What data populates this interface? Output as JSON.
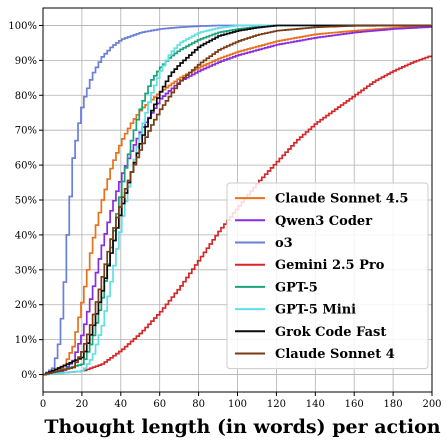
{
  "chart_data": {
    "type": "line",
    "xlabel": "Thought length (in words) per action",
    "ylabel": "",
    "xlim": [
      0,
      200
    ],
    "ylim": [
      -5,
      105
    ],
    "xticks": [
      0,
      20,
      40,
      60,
      80,
      100,
      120,
      140,
      160,
      180,
      200
    ],
    "yticks": [
      0,
      10,
      20,
      30,
      40,
      50,
      60,
      70,
      80,
      90,
      100
    ],
    "ytick_labels": [
      "0%",
      "10%",
      "20%",
      "30%",
      "40%",
      "50%",
      "60%",
      "70%",
      "80%",
      "90%",
      "100%"
    ],
    "grid": true,
    "legend_position": "lower-right",
    "series": [
      {
        "name": "Claude Sonnet 4.5",
        "color": "#e8711a",
        "x": [
          0,
          10,
          15,
          20,
          25,
          30,
          35,
          40,
          45,
          50,
          60,
          70,
          80,
          90,
          100,
          120,
          140,
          160,
          180,
          200
        ],
        "y": [
          0,
          2,
          8,
          22,
          38,
          50,
          60,
          67,
          72,
          76,
          81,
          85,
          88,
          90.5,
          92.5,
          95.5,
          97.5,
          98.5,
          99.3,
          99.8
        ]
      },
      {
        "name": "Qwen3 Coder",
        "color": "#8a2be2",
        "x": [
          0,
          10,
          15,
          20,
          25,
          30,
          35,
          40,
          45,
          50,
          60,
          70,
          80,
          90,
          100,
          120,
          140,
          160,
          180,
          200
        ],
        "y": [
          0,
          1,
          4,
          12,
          24,
          37,
          48,
          57,
          64,
          70,
          79,
          84,
          87,
          89.5,
          91.5,
          94.5,
          96.5,
          98,
          99,
          99.6
        ]
      },
      {
        "name": "o3",
        "color": "#6a7fdb",
        "x": [
          0,
          5,
          8,
          10,
          12,
          15,
          18,
          20,
          25,
          30,
          35,
          40,
          50,
          60,
          70,
          80,
          90,
          100,
          120,
          200
        ],
        "y": [
          0,
          2,
          10,
          22,
          40,
          62,
          72,
          78,
          86,
          91,
          94,
          96,
          98,
          99,
          99.5,
          99.8,
          100,
          100,
          100,
          100
        ]
      },
      {
        "name": "Gemini 2.5 Pro",
        "color": "#d62728",
        "x": [
          0,
          20,
          30,
          40,
          50,
          60,
          70,
          80,
          90,
          100,
          110,
          120,
          130,
          140,
          150,
          160,
          170,
          180,
          190,
          200
        ],
        "y": [
          0,
          1,
          3,
          7,
          12,
          18,
          25,
          33,
          41,
          48,
          55,
          61,
          67,
          72,
          76,
          80,
          84,
          87,
          89.5,
          91.5
        ]
      },
      {
        "name": "GPT-5",
        "color": "#1aa37a",
        "x": [
          0,
          20,
          25,
          30,
          35,
          40,
          45,
          50,
          55,
          60,
          65,
          70,
          80,
          90,
          100,
          110,
          120,
          140,
          200
        ],
        "y": [
          0,
          3,
          10,
          22,
          38,
          54,
          67,
          77,
          84,
          88,
          91,
          93,
          96,
          98,
          99,
          99.6,
          100,
          100,
          100
        ]
      },
      {
        "name": "GPT-5 Mini",
        "color": "#5ee0e8",
        "x": [
          0,
          20,
          25,
          30,
          35,
          40,
          45,
          50,
          55,
          60,
          65,
          70,
          80,
          90,
          100,
          120,
          200
        ],
        "y": [
          0,
          1,
          5,
          14,
          28,
          44,
          58,
          70,
          80,
          87,
          92,
          95,
          98,
          99.3,
          100,
          100,
          100
        ]
      },
      {
        "name": "Grok Code Fast",
        "color": "#0a0a0a",
        "x": [
          0,
          20,
          25,
          30,
          35,
          40,
          45,
          50,
          55,
          60,
          65,
          70,
          80,
          90,
          100,
          110,
          120,
          140,
          200
        ],
        "y": [
          0,
          5,
          13,
          24,
          36,
          48,
          58,
          67,
          75,
          81,
          86,
          89,
          94,
          97,
          98.5,
          99.4,
          100,
          100,
          100
        ]
      },
      {
        "name": "Claude Sonnet 4",
        "color": "#7a3b14",
        "x": [
          0,
          15,
          20,
          25,
          30,
          35,
          40,
          45,
          50,
          55,
          60,
          70,
          80,
          90,
          100,
          110,
          120,
          140,
          160,
          200
        ],
        "y": [
          0,
          2,
          7,
          16,
          28,
          40,
          50,
          58,
          65,
          71,
          76,
          84,
          89,
          93,
          95.5,
          97.3,
          98.5,
          99.5,
          99.9,
          100
        ]
      }
    ]
  }
}
